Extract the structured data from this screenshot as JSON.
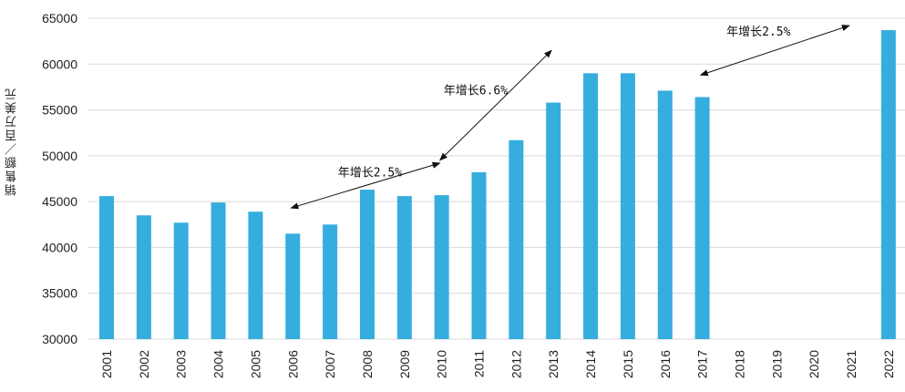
{
  "chart_data": {
    "type": "bar",
    "ylabel": "销售额／百万美元",
    "xlabel": "",
    "ylim": [
      30000,
      65000
    ],
    "y_ticks": [
      30000,
      35000,
      40000,
      45000,
      50000,
      55000,
      60000,
      65000
    ],
    "grid": true,
    "colors": {
      "bar": "#35ADDE",
      "grid": "#d9d9d9",
      "text": "#222222"
    },
    "categories": [
      "2001",
      "2002",
      "2003",
      "2004",
      "2005",
      "2006",
      "2007",
      "2008",
      "2009",
      "2010",
      "2011",
      "2012",
      "2013",
      "2014",
      "2015",
      "2016",
      "2017",
      "2018",
      "2019",
      "2020",
      "2021",
      "2022"
    ],
    "values": [
      45600,
      43500,
      42700,
      44900,
      43900,
      41500,
      42500,
      46300,
      45600,
      45700,
      48200,
      51700,
      55800,
      59000,
      59000,
      57100,
      56400,
      null,
      null,
      null,
      null,
      63700
    ],
    "annotations": [
      {
        "text": "年增长2.5%",
        "from_year": "2006",
        "from_value": 44300,
        "to_year": "2010",
        "to_value": 49200
      },
      {
        "text": "年增长6.6%",
        "from_year": "2010",
        "from_value": 49500,
        "to_year": "2013",
        "to_value": 61500
      },
      {
        "text": "年增长2.5%",
        "from_year": "2017",
        "from_value": 58800,
        "to_year": "2021",
        "to_value": 64200
      }
    ]
  }
}
